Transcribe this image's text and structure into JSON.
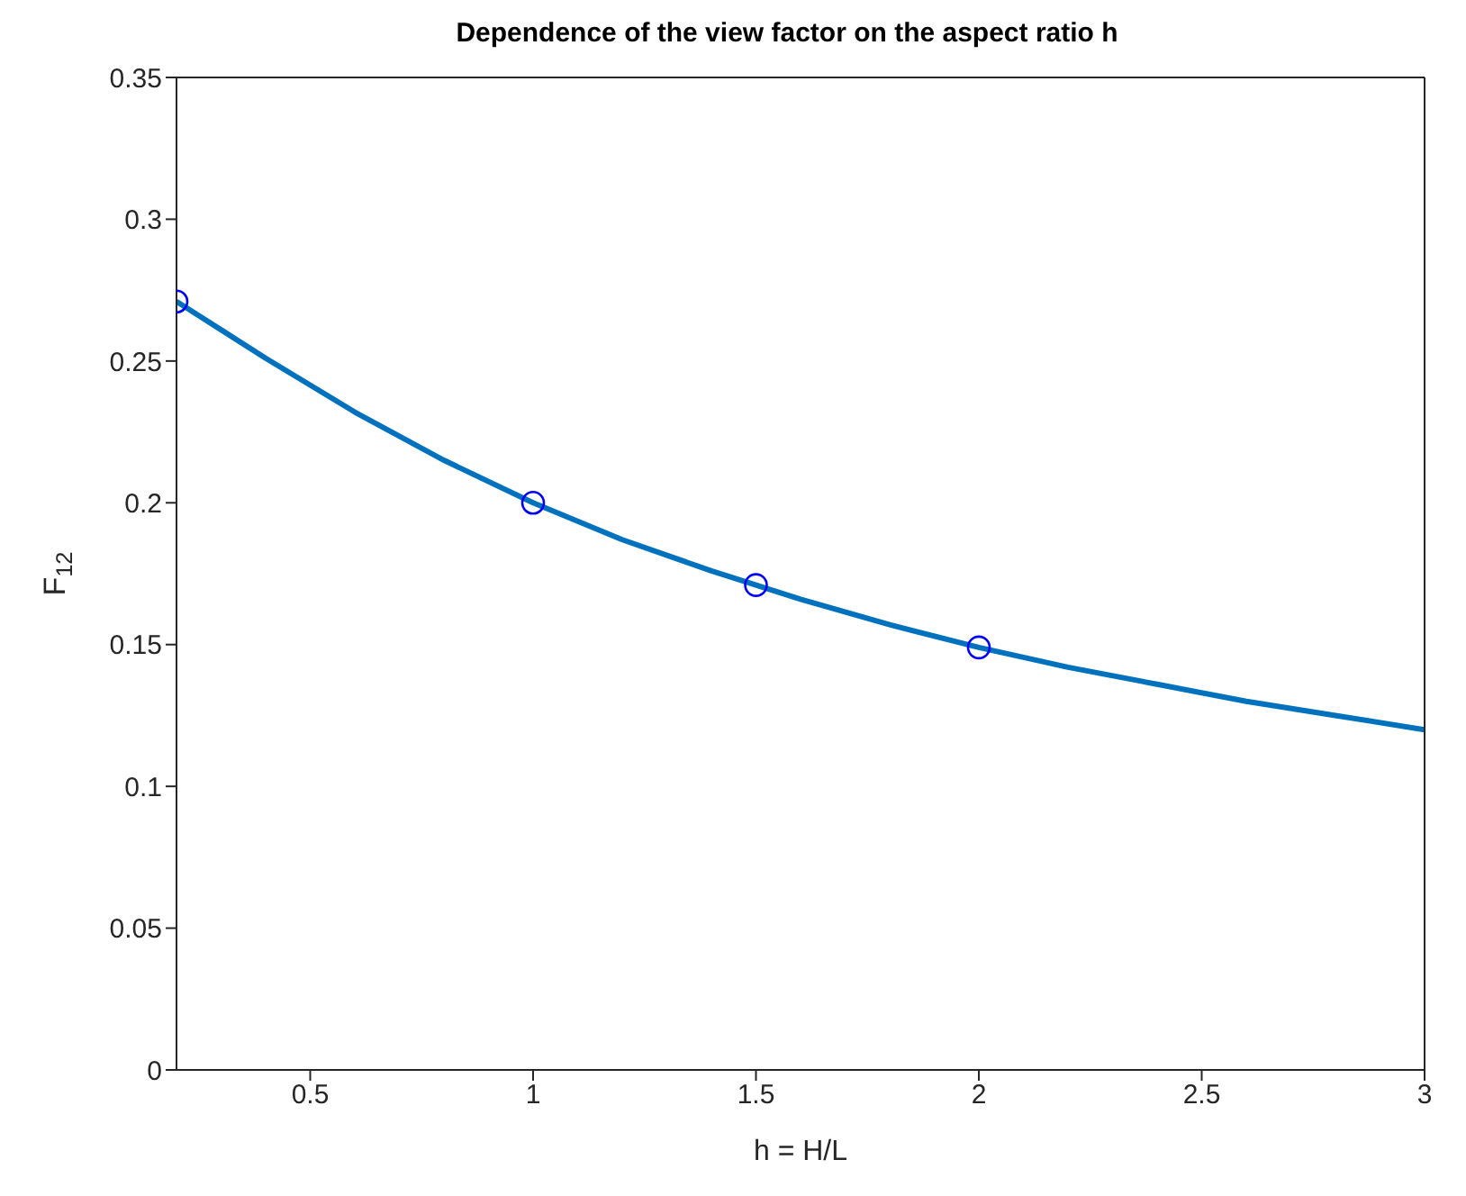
{
  "chart_data": {
    "type": "line",
    "title": "Dependence of the view factor on the aspect ratio h",
    "xlabel": "h = H/L",
    "ylabel": "F$_{12}$",
    "xlim": [
      0.2,
      3
    ],
    "xticks": [
      0.5,
      1,
      1.5,
      2,
      2.5,
      3
    ],
    "ylim": [
      0,
      0.35
    ],
    "yticks": [
      0,
      0.05,
      0.1,
      0.15,
      0.2,
      0.25,
      0.3,
      0.35
    ],
    "series": [
      {
        "color": "#0072bd",
        "marker": "none",
        "line_style": "solid",
        "x": [
          0.2,
          0.4,
          0.6,
          0.8,
          1.0,
          1.2,
          1.4,
          1.5,
          1.6,
          1.8,
          2.0,
          2.2,
          2.4,
          2.6,
          2.8,
          3.0
        ],
        "values": [
          0.271,
          0.251,
          0.232,
          0.215,
          0.2,
          0.187,
          0.176,
          0.171,
          0.166,
          0.157,
          0.149,
          0.142,
          0.136,
          0.13,
          0.125,
          0.12
        ]
      },
      {
        "type": "scatter",
        "color": "#0000ff",
        "marker": "circle",
        "x": [
          0.2,
          1,
          1.5,
          2
        ],
        "values": [
          0.271,
          0.2,
          0.171,
          0.149
        ]
      }
    ]
  }
}
